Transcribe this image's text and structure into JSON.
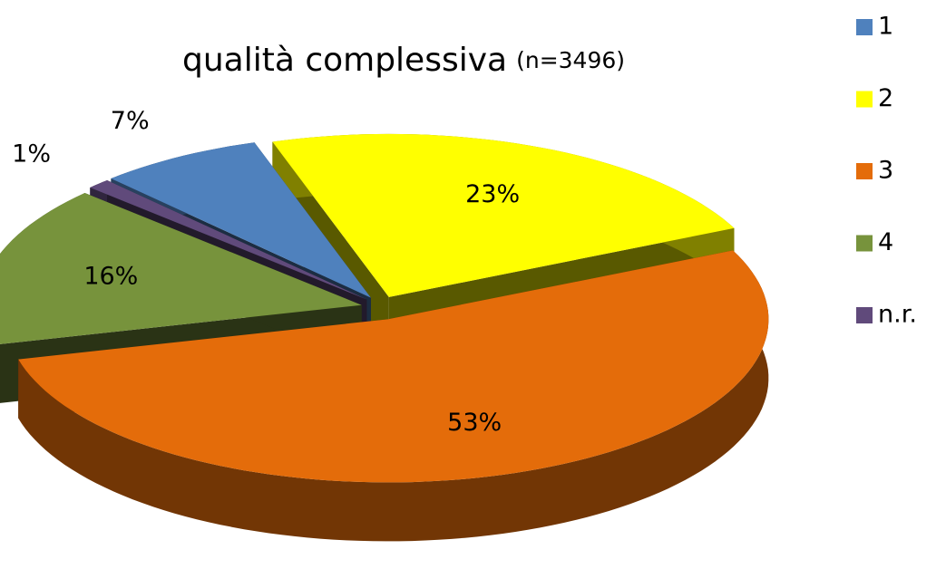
{
  "chart_data": {
    "type": "pie",
    "title": "qualità complessiva",
    "subtitle": "(n=3496)",
    "categories": [
      "1",
      "2",
      "3",
      "4",
      "n.r."
    ],
    "values": [
      7,
      23,
      53,
      16,
      1
    ],
    "value_labels": [
      "7%",
      "23%",
      "53%",
      "16%",
      "1%"
    ],
    "colors": [
      "#4f81bd",
      "#ffff00",
      "#e46c0a",
      "#77933c",
      "#604a7b"
    ],
    "legend": "right"
  }
}
